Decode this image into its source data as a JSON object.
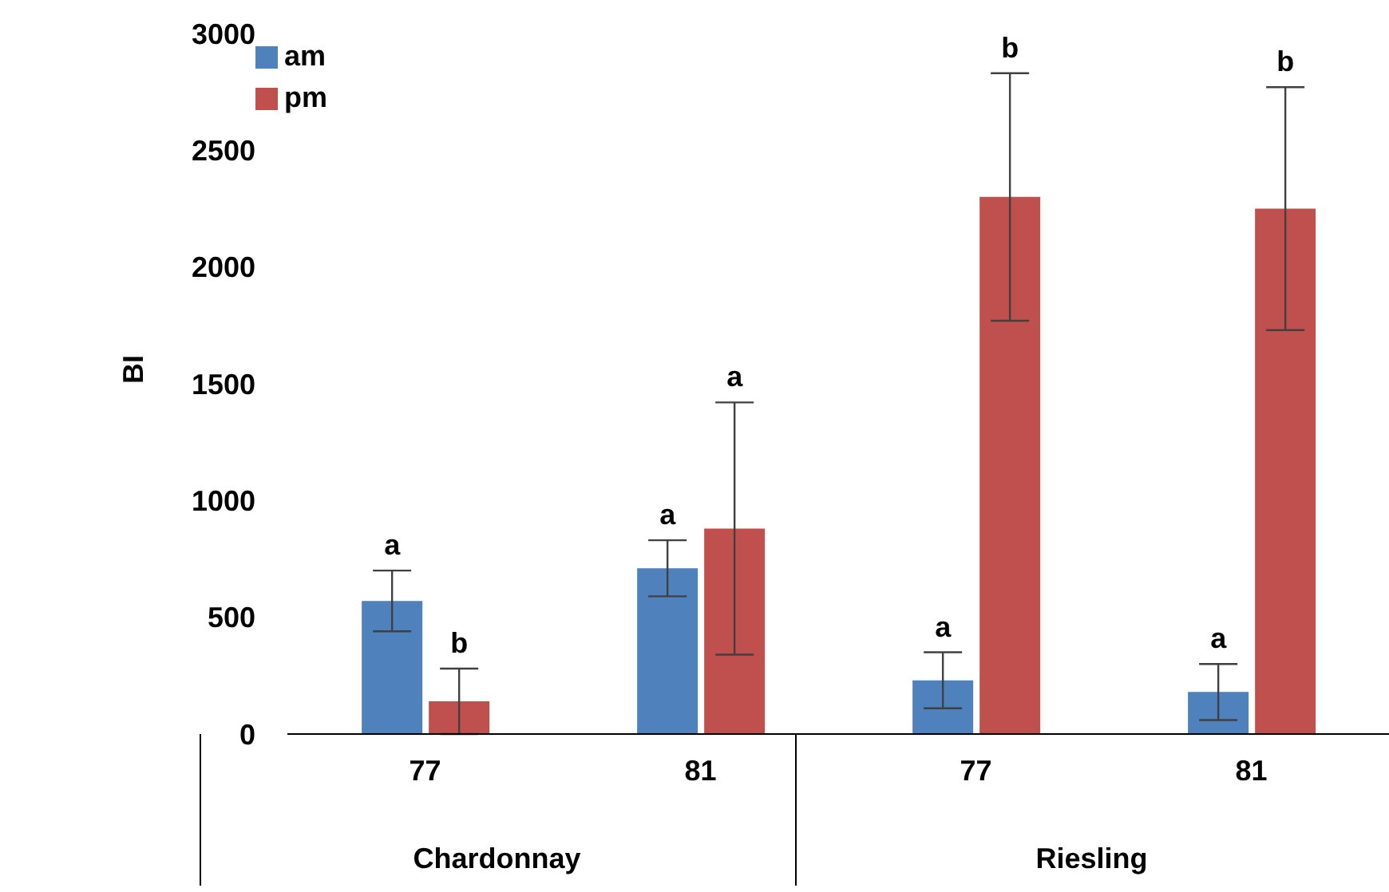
{
  "chart_data": {
    "type": "bar",
    "ylabel": "BI",
    "categories": [
      "77",
      "81",
      "77",
      "81"
    ],
    "annotations": [
      "Chardonnay",
      "Riesling",
      "a",
      "a",
      "a",
      "a",
      "b",
      "a",
      "b",
      "b"
    ],
    "series": [
      {
        "name": "am",
        "color": "#4f81bd",
        "values": [
          570,
          710,
          230,
          180
        ],
        "errors": [
          130,
          120,
          120,
          120
        ]
      },
      {
        "name": "pm",
        "color": "#c0504d",
        "values": [
          140,
          880,
          2300,
          2250
        ],
        "errors": [
          140,
          540,
          530,
          520
        ]
      }
    ],
    "ylim": [
      0,
      3000
    ],
    "yticks": [
      0,
      500,
      1000,
      1500,
      2000,
      2500,
      3000
    ],
    "grid": false,
    "legend": "top left"
  }
}
